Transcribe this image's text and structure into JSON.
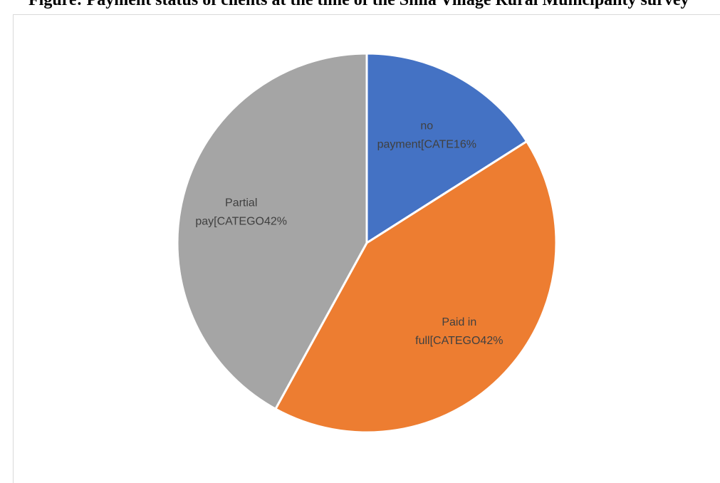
{
  "page": {
    "title": "Figure: Payment status of clients at the time of the Shila Village Rural Municipality survey"
  },
  "chart_data": {
    "type": "pie",
    "title": "",
    "categories": [
      "no payment",
      "Paid in full",
      "Partial pay"
    ],
    "values": [
      16,
      42,
      42
    ],
    "unit": "%",
    "start_angle_deg": 0,
    "direction": "clockwise",
    "colors": [
      "#4472c4",
      "#ed7d31",
      "#a5a5a5"
    ],
    "data_labels": [
      {
        "line1": "no",
        "line2": "payment[CATE16%"
      },
      {
        "line1": "Paid in",
        "line2": "full[CATEGO42%"
      },
      {
        "line1": "Partial",
        "line2": "pay[CATEGO42%"
      }
    ],
    "legend": "none"
  }
}
